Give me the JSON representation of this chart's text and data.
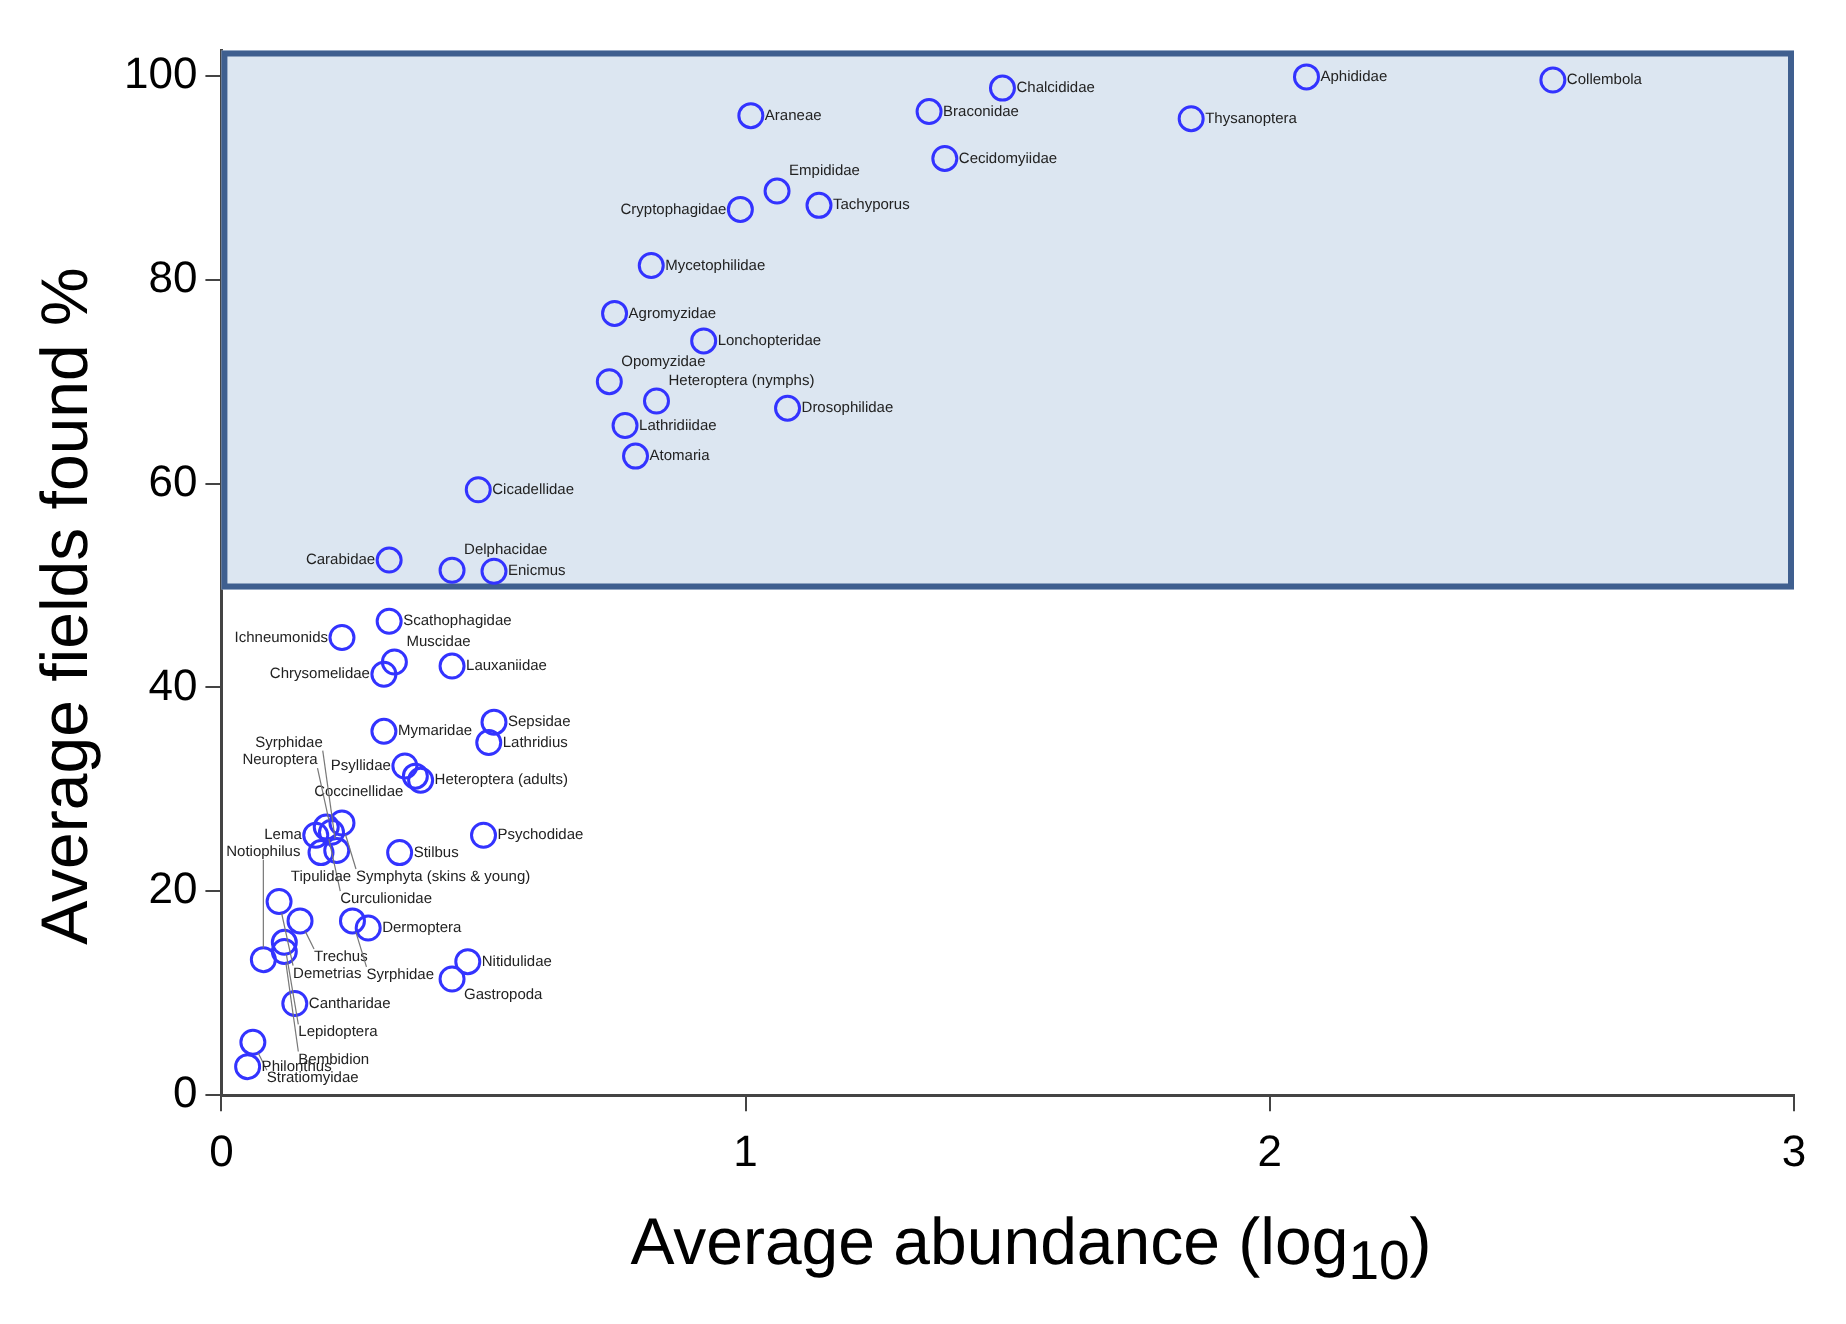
{
  "chart_data": {
    "type": "scatter",
    "xlabel": "Average abundance (log$_{10}$)",
    "ylabel": "Average fields found %",
    "xlim": [
      0,
      3
    ],
    "xticks": [
      0,
      1,
      2,
      3
    ],
    "ylim": [
      0,
      102.5
    ],
    "yticks": [
      0,
      20,
      40,
      60,
      80,
      100
    ],
    "grid": false,
    "marker": "circle",
    "bands": [
      {
        "axis": "y",
        "from": 49.6,
        "to": 102.5,
        "color": "#dce6f1"
      }
    ],
    "series": [
      {
        "color": "#3333ff",
        "x": [
          1.01,
          1.35,
          1.49,
          1.38,
          1.06,
          0.99,
          1.14,
          0.82,
          0.75,
          0.92,
          0.74,
          0.83,
          1.08,
          0.77,
          0.79,
          0.49,
          0.52,
          0.44,
          0.32,
          2.07,
          1.85,
          2.54,
          0.23,
          0.32,
          0.33,
          0.31,
          0.44,
          0.52,
          0.51,
          0.31,
          0.35,
          0.37,
          0.38,
          0.23,
          0.2,
          0.21,
          0.18,
          0.19,
          0.22,
          0.34,
          0.5,
          0.11,
          0.15,
          0.25,
          0.28,
          0.12,
          0.12,
          0.08,
          0.47,
          0.44,
          0.14,
          0.06,
          0.05
        ],
        "values": [
          96.1,
          96.5,
          98.8,
          91.9,
          88.7,
          86.9,
          87.3,
          81.4,
          76.7,
          74.0,
          70.0,
          68.1,
          67.4,
          65.7,
          62.7,
          59.4,
          51.4,
          51.5,
          52.5,
          99.9,
          95.8,
          99.6,
          44.9,
          46.5,
          42.5,
          41.3,
          42.1,
          36.6,
          34.6,
          35.7,
          32.3,
          31.3,
          30.9,
          26.7,
          26.3,
          25.8,
          25.5,
          23.8,
          24.0,
          23.8,
          25.5,
          19.0,
          17.1,
          17.1,
          16.4,
          15.0,
          14.1,
          13.3,
          13.1,
          11.4,
          9.0,
          5.2,
          2.8
        ]
      }
    ],
    "annotations": [
      {
        "text": "Araneae",
        "x": 1.01,
        "y": 96.1
      },
      {
        "text": "Braconidae",
        "x": 1.35,
        "y": 96.5
      },
      {
        "text": "Chalcididae",
        "x": 1.49,
        "y": 98.8
      },
      {
        "text": "Cecidomyiidae",
        "x": 1.38,
        "y": 91.9
      },
      {
        "text": "Empididae",
        "x": 1.06,
        "y": 88.7
      },
      {
        "text": "Cryptophagidae",
        "x": 0.99,
        "y": 86.9
      },
      {
        "text": "Tachyporus",
        "x": 1.14,
        "y": 87.3
      },
      {
        "text": "Mycetophilidae",
        "x": 0.82,
        "y": 81.4
      },
      {
        "text": "Agromyzidae",
        "x": 0.75,
        "y": 76.7
      },
      {
        "text": "Lonchopteridae",
        "x": 0.92,
        "y": 74.0
      },
      {
        "text": "Opomyzidae",
        "x": 0.74,
        "y": 70.0
      },
      {
        "text": "Heteroptera (nymphs)",
        "x": 0.83,
        "y": 68.1
      },
      {
        "text": "Drosophilidae",
        "x": 1.08,
        "y": 67.4
      },
      {
        "text": "Lathridiidae",
        "x": 0.77,
        "y": 65.7
      },
      {
        "text": "Atomaria",
        "x": 0.79,
        "y": 62.7
      },
      {
        "text": "Cicadellidae",
        "x": 0.49,
        "y": 59.4
      },
      {
        "text": "Enicmus",
        "x": 0.52,
        "y": 51.4
      },
      {
        "text": "Delphacidae",
        "x": 0.44,
        "y": 51.5
      },
      {
        "text": "Carabidae",
        "x": 0.32,
        "y": 52.5
      },
      {
        "text": "Aphididae",
        "x": 2.07,
        "y": 99.9
      },
      {
        "text": "Thysanoptera",
        "x": 1.85,
        "y": 95.8
      },
      {
        "text": "Collembola",
        "x": 2.54,
        "y": 99.6
      },
      {
        "text": "Ichneumonids",
        "x": 0.23,
        "y": 44.9
      },
      {
        "text": "Scathophagidae",
        "x": 0.32,
        "y": 46.5
      },
      {
        "text": "Muscidae",
        "x": 0.33,
        "y": 42.5
      },
      {
        "text": "Chrysomelidae",
        "x": 0.31,
        "y": 41.3
      },
      {
        "text": "Lauxaniidae",
        "x": 0.44,
        "y": 42.1
      },
      {
        "text": "Sepsidae",
        "x": 0.52,
        "y": 36.6
      },
      {
        "text": "Lathridius",
        "x": 0.51,
        "y": 34.6
      },
      {
        "text": "Mymaridae",
        "x": 0.31,
        "y": 35.7
      },
      {
        "text": "Psyllidae",
        "x": 0.35,
        "y": 32.3
      },
      {
        "text": "Coccinellidae",
        "x": 0.37,
        "y": 31.3
      },
      {
        "text": "Heteroptera (adults)",
        "x": 0.38,
        "y": 30.9
      },
      {
        "text": "Symphyta (skins & young)",
        "x": 0.23,
        "y": 26.7
      },
      {
        "text": "Curculionidae",
        "x": 0.2,
        "y": 26.3
      },
      {
        "text": "Neuroptera",
        "x": 0.21,
        "y": 25.8
      },
      {
        "text": "Lema",
        "x": 0.18,
        "y": 25.5
      },
      {
        "text": "Tipulidae",
        "x": 0.19,
        "y": 23.8
      },
      {
        "text": "Syrphidae",
        "x": 0.22,
        "y": 24.0
      },
      {
        "text": "Stilbus",
        "x": 0.34,
        "y": 23.8
      },
      {
        "text": "Psychodidae",
        "x": 0.5,
        "y": 25.5
      },
      {
        "text": "Demetrias",
        "x": 0.11,
        "y": 19.0
      },
      {
        "text": "Trechus",
        "x": 0.15,
        "y": 17.1
      },
      {
        "text": "Syrphidae",
        "x": 0.25,
        "y": 17.1
      },
      {
        "text": "Dermoptera",
        "x": 0.28,
        "y": 16.4
      },
      {
        "text": "Lepidoptera",
        "x": 0.12,
        "y": 15.0
      },
      {
        "text": "Bembidion",
        "x": 0.12,
        "y": 14.1
      },
      {
        "text": "Notiophilus",
        "x": 0.08,
        "y": 13.3
      },
      {
        "text": "Nitidulidae",
        "x": 0.47,
        "y": 13.1
      },
      {
        "text": "Gastropoda",
        "x": 0.44,
        "y": 11.4
      },
      {
        "text": "Cantharidae",
        "x": 0.14,
        "y": 9.0
      },
      {
        "text": "Stratiomyidae",
        "x": 0.06,
        "y": 5.2
      },
      {
        "text": "Philonthus",
        "x": 0.05,
        "y": 2.8
      }
    ]
  }
}
